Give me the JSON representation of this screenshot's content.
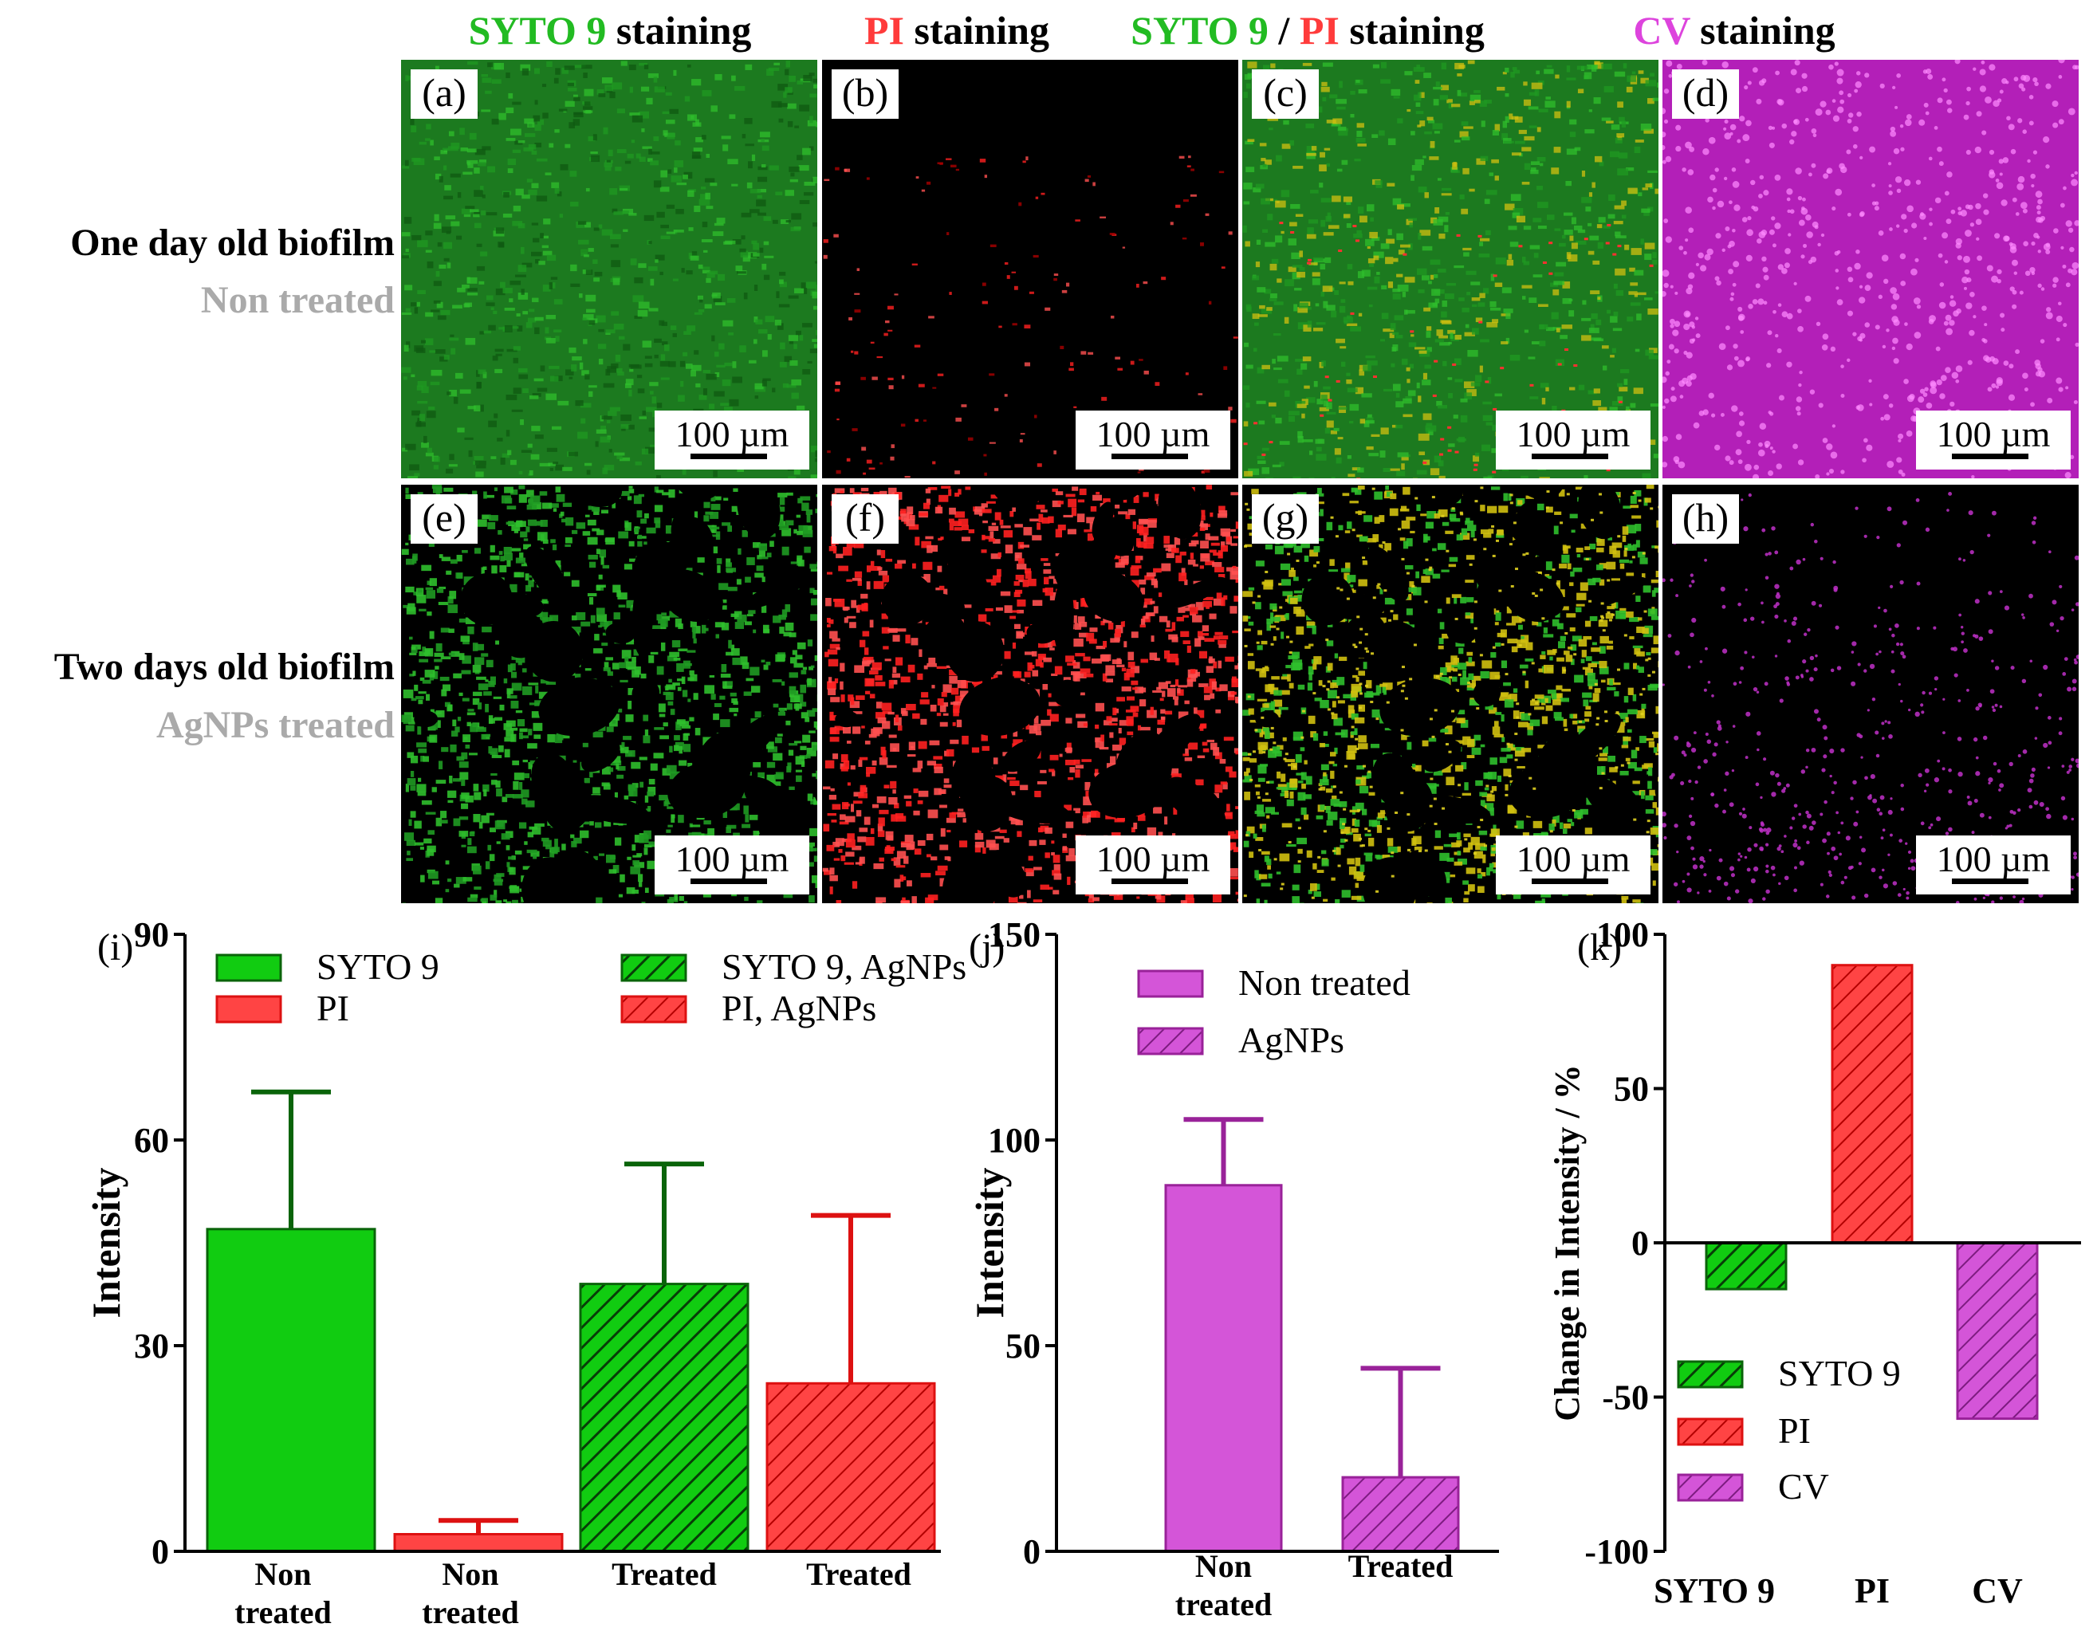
{
  "column_headers": [
    {
      "segments": [
        {
          "text": "SYTO 9",
          "color": "#22bb22"
        },
        {
          "text": " staining",
          "color": "#000000"
        }
      ]
    },
    {
      "segments": [
        {
          "text": "PI",
          "color": "#ff3b3b"
        },
        {
          "text": " staining",
          "color": "#000000"
        }
      ]
    },
    {
      "segments": [
        {
          "text": "SYTO 9",
          "color": "#22bb22"
        },
        {
          "text": " / ",
          "color": "#000000"
        },
        {
          "text": "PI",
          "color": "#ff3b3b"
        },
        {
          "text": " staining",
          "color": "#000000"
        }
      ]
    },
    {
      "segments": [
        {
          "text": "CV",
          "color": "#dd44dd"
        },
        {
          "text": " staining",
          "color": "#000000"
        }
      ]
    }
  ],
  "row_labels": [
    {
      "title": "One day old biofilm",
      "subtitle": "Non treated"
    },
    {
      "title": "Two days old biofilm",
      "subtitle": "AgNPs treated"
    }
  ],
  "micrographs": [
    {
      "label": "(a)",
      "stain": "syto9",
      "pattern": "dense",
      "scale_bar": "100 µm"
    },
    {
      "label": "(b)",
      "stain": "pi",
      "pattern": "sparse",
      "scale_bar": "100 µm"
    },
    {
      "label": "(c)",
      "stain": "merge",
      "pattern": "dense",
      "scale_bar": "100 µm"
    },
    {
      "label": "(d)",
      "stain": "cv",
      "pattern": "dots",
      "scale_bar": "100 µm"
    },
    {
      "label": "(e)",
      "stain": "syto9",
      "pattern": "holes",
      "scale_bar": "100 µm"
    },
    {
      "label": "(f)",
      "stain": "pi",
      "pattern": "holes",
      "scale_bar": "100 µm"
    },
    {
      "label": "(g)",
      "stain": "merge",
      "pattern": "holes",
      "scale_bar": "100 µm"
    },
    {
      "label": "(h)",
      "stain": "cv",
      "pattern": "sparse-dots",
      "scale_bar": "100 µm"
    }
  ],
  "colors": {
    "syto9_fill": "#11cc11",
    "syto9_err": "#0a640a",
    "pi_fill": "#ff4444",
    "pi_err": "#dd1111",
    "cv_fill": "#d455d8",
    "cv_err": "#992299",
    "edge": "#222222"
  },
  "chart_data": [
    {
      "panel": "(i)",
      "type": "bar",
      "ylabel": "Intensity",
      "ylim": [
        0,
        90
      ],
      "yticks": [
        0,
        30,
        60,
        90
      ],
      "categories": [
        "Non treated",
        "Non treated",
        "Treated",
        "Treated"
      ],
      "bars": [
        {
          "series": "SYTO 9",
          "value": 47,
          "error": 20,
          "color_key": "syto9",
          "hatched": false
        },
        {
          "series": "PI",
          "value": 2.5,
          "error": 2,
          "color_key": "pi",
          "hatched": false
        },
        {
          "series": "SYTO 9, AgNPs",
          "value": 39,
          "error": 17.5,
          "color_key": "syto9",
          "hatched": true
        },
        {
          "series": "PI, AgNPs",
          "value": 24.5,
          "error": 24.5,
          "color_key": "pi",
          "hatched": true
        }
      ],
      "legend": [
        {
          "label": "SYTO 9",
          "color_key": "syto9",
          "hatched": false
        },
        {
          "label": "PI",
          "color_key": "pi",
          "hatched": false
        },
        {
          "label": "SYTO 9, AgNPs",
          "color_key": "syto9",
          "hatched": true
        },
        {
          "label": "PI, AgNPs",
          "color_key": "pi",
          "hatched": true
        }
      ]
    },
    {
      "panel": "(j)",
      "type": "bar",
      "ylabel": "Intensity",
      "ylim": [
        0,
        150
      ],
      "yticks": [
        0,
        50,
        100,
        150
      ],
      "categories": [
        "Non treated",
        "Treated"
      ],
      "bars": [
        {
          "series": "Non treated",
          "value": 89,
          "error": 16,
          "color_key": "cv",
          "hatched": false
        },
        {
          "series": "AgNPs",
          "value": 18,
          "error": 26.5,
          "color_key": "cv",
          "hatched": true
        }
      ],
      "legend": [
        {
          "label": "Non treated",
          "color_key": "cv",
          "hatched": false
        },
        {
          "label": "AgNPs",
          "color_key": "cv",
          "hatched": true
        }
      ]
    },
    {
      "panel": "(k)",
      "type": "bar",
      "ylabel": "Change in Intensity / %",
      "ylim": [
        -100,
        100
      ],
      "yticks": [
        -100,
        -50,
        0,
        50,
        100
      ],
      "categories": [
        "SYTO 9",
        "PI",
        "CV"
      ],
      "bars": [
        {
          "series": "SYTO 9",
          "value": -15,
          "color_key": "syto9",
          "hatched": true
        },
        {
          "series": "PI",
          "value": 90,
          "color_key": "pi",
          "hatched": true
        },
        {
          "series": "CV",
          "value": -57,
          "color_key": "cv",
          "hatched": true
        }
      ],
      "legend": [
        {
          "label": "SYTO 9",
          "color_key": "syto9",
          "hatched": true
        },
        {
          "label": "PI",
          "color_key": "pi",
          "hatched": true
        },
        {
          "label": "CV",
          "color_key": "cv",
          "hatched": true
        }
      ]
    }
  ]
}
